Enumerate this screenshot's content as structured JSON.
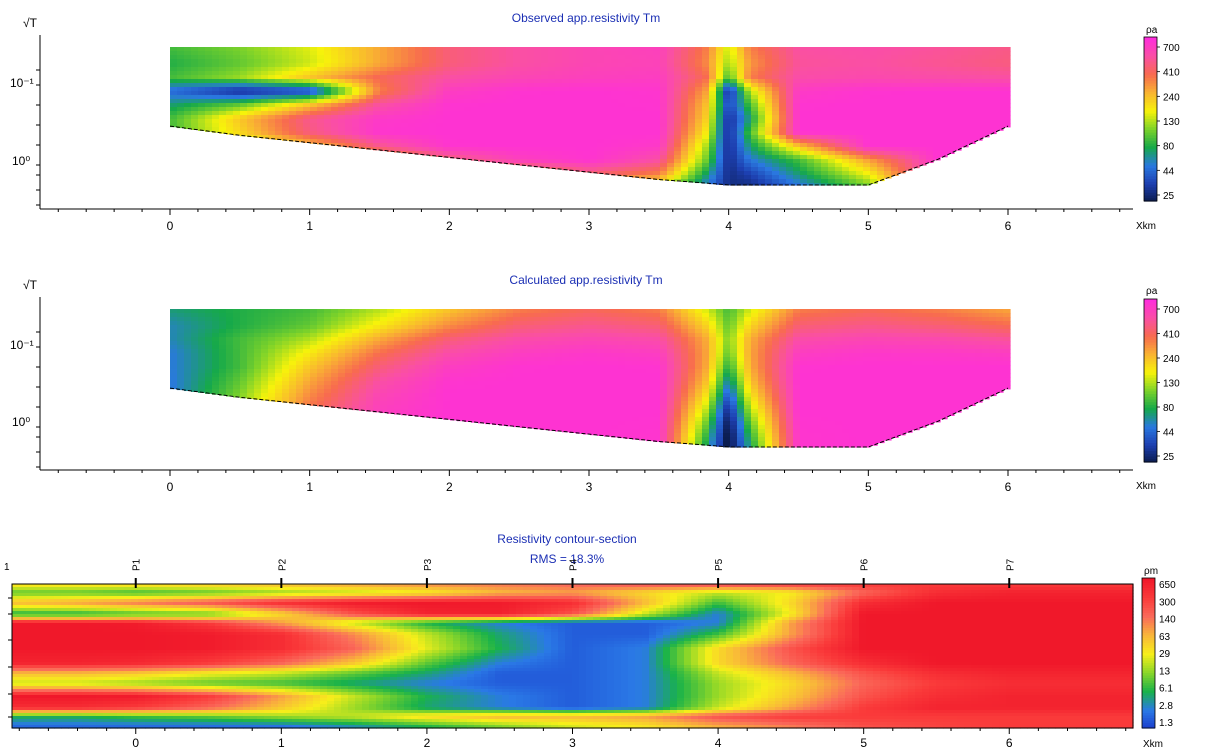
{
  "colors": {
    "title": "#1b2fb4",
    "app_res_scale": [
      "#0a1a4a",
      "#1d3fb0",
      "#2a78e0",
      "#16a94a",
      "#7cd22a",
      "#f7f30a",
      "#f9b431",
      "#f86b4f",
      "#fa4fa4",
      "#ff2ddc"
    ],
    "res_scale": [
      "#1a3bcc",
      "#2a79e6",
      "#19b24a",
      "#8ad629",
      "#f7ef1a",
      "#f9b63a",
      "#fa6a5a",
      "#fa3a3a",
      "#f0182a"
    ]
  },
  "chart_data": [
    {
      "type": "heatmap",
      "title": "Observed app.resistivity Tm",
      "ylabel": "√T",
      "xlabel": "Xkm",
      "x_ticks": [
        "0",
        "1",
        "2",
        "3",
        "4",
        "5",
        "6"
      ],
      "xlim": [
        -1.1,
        6.8
      ],
      "y_ticks": [
        "10⁻¹",
        "10⁰"
      ],
      "colorbar_label": "ρa",
      "colorbar_ticks": [
        "700",
        "410",
        "240",
        "130",
        "80",
        "44",
        "25"
      ],
      "x": [
        0,
        0.5,
        1,
        1.5,
        2,
        2.5,
        3,
        3.5,
        3.85,
        4,
        4.15,
        4.5,
        5,
        5.5,
        6
      ],
      "bottom_sqrtT": [
        1.08,
        1.18,
        1.26,
        1.34,
        1.42,
        1.5,
        1.58,
        1.66,
        1.7,
        1.72,
        1.72,
        1.72,
        1.72,
        1.44,
        1.08
      ],
      "sqrtT": [
        0.22,
        0.4,
        0.55,
        0.7,
        0.85,
        1.0,
        1.15,
        1.3,
        1.45,
        1.6,
        1.72
      ],
      "rho_a": [
        [
          80,
          100,
          140,
          240,
          410,
          500,
          560,
          600,
          300,
          130,
          300,
          500,
          520,
          480,
          440
        ],
        [
          70,
          90,
          130,
          240,
          410,
          500,
          560,
          580,
          280,
          110,
          260,
          480,
          500,
          460,
          420
        ],
        [
          80,
          110,
          200,
          350,
          500,
          560,
          600,
          620,
          330,
          80,
          300,
          520,
          540,
          520,
          500
        ],
        [
          40,
          25,
          30,
          300,
          620,
          690,
          700,
          680,
          240,
          25,
          120,
          640,
          690,
          700,
          700
        ],
        [
          60,
          90,
          200,
          500,
          690,
          700,
          700,
          690,
          200,
          30,
          80,
          690,
          700,
          700,
          700
        ],
        [
          80,
          200,
          450,
          650,
          700,
          700,
          700,
          700,
          180,
          25,
          60,
          700,
          700,
          700,
          700
        ],
        [
          80,
          180,
          420,
          680,
          700,
          700,
          700,
          700,
          150,
          25,
          80,
          700,
          700,
          700,
          700
        ],
        [
          60,
          100,
          200,
          450,
          690,
          700,
          700,
          650,
          110,
          25,
          60,
          200,
          700,
          700,
          700
        ],
        [
          70,
          80,
          110,
          200,
          400,
          600,
          690,
          500,
          90,
          25,
          44,
          80,
          250,
          700,
          700
        ],
        [
          80,
          80,
          80,
          100,
          150,
          250,
          400,
          300,
          60,
          25,
          30,
          60,
          150,
          700,
          700
        ],
        [
          80,
          80,
          80,
          80,
          100,
          130,
          200,
          150,
          44,
          25,
          25,
          44,
          100,
          700,
          700
        ]
      ]
    },
    {
      "type": "heatmap",
      "title": "Calculated app.resistivity Tm",
      "ylabel": "√T",
      "xlabel": "Xkm",
      "x_ticks": [
        "0",
        "1",
        "2",
        "3",
        "4",
        "5",
        "6"
      ],
      "xlim": [
        -1.1,
        6.8
      ],
      "y_ticks": [
        "10⁻¹",
        "10⁰"
      ],
      "colorbar_label": "ρa",
      "colorbar_ticks": [
        "700",
        "410",
        "240",
        "130",
        "80",
        "44",
        "25"
      ],
      "x": [
        0,
        0.5,
        1,
        1.5,
        2,
        2.5,
        3,
        3.5,
        3.85,
        4,
        4.15,
        4.5,
        5,
        5.5,
        6
      ],
      "bottom_sqrtT": [
        1.08,
        1.18,
        1.26,
        1.34,
        1.42,
        1.5,
        1.58,
        1.66,
        1.7,
        1.72,
        1.72,
        1.72,
        1.72,
        1.44,
        1.08
      ],
      "sqrtT": [
        0.22,
        0.4,
        0.55,
        0.7,
        0.85,
        1.0,
        1.15,
        1.3,
        1.45,
        1.6,
        1.72
      ],
      "rho_a": [
        [
          60,
          70,
          80,
          120,
          200,
          300,
          350,
          300,
          130,
          80,
          130,
          300,
          340,
          300,
          240
        ],
        [
          50,
          70,
          90,
          160,
          280,
          400,
          450,
          400,
          180,
          90,
          180,
          400,
          440,
          400,
          340
        ],
        [
          50,
          80,
          120,
          240,
          410,
          520,
          560,
          520,
          230,
          100,
          230,
          520,
          560,
          540,
          480
        ],
        [
          45,
          80,
          160,
          330,
          520,
          620,
          660,
          620,
          240,
          90,
          240,
          620,
          660,
          650,
          620
        ],
        [
          45,
          80,
          200,
          410,
          620,
          690,
          700,
          690,
          230,
          70,
          230,
          690,
          700,
          700,
          700
        ],
        [
          44,
          90,
          240,
          500,
          680,
          700,
          700,
          700,
          200,
          50,
          200,
          700,
          700,
          700,
          700
        ],
        [
          44,
          100,
          280,
          560,
          700,
          700,
          700,
          700,
          160,
          35,
          160,
          700,
          700,
          700,
          700
        ],
        [
          44,
          110,
          320,
          600,
          700,
          700,
          700,
          700,
          120,
          25,
          120,
          700,
          700,
          700,
          700
        ],
        [
          44,
          120,
          340,
          620,
          700,
          700,
          700,
          690,
          90,
          20,
          90,
          690,
          700,
          700,
          700
        ],
        [
          44,
          120,
          350,
          640,
          700,
          700,
          700,
          680,
          70,
          18,
          70,
          680,
          700,
          700,
          700
        ],
        [
          44,
          120,
          350,
          640,
          700,
          700,
          700,
          680,
          60,
          18,
          60,
          680,
          700,
          700,
          700
        ]
      ]
    },
    {
      "type": "heatmap",
      "title": "Resistivity contour-section",
      "subtitle": "RMS = 18.3%",
      "xlabel": "Xkm",
      "x_ticks": [
        "0",
        "1",
        "2",
        "3",
        "4",
        "5",
        "6"
      ],
      "xlim": [
        -0.85,
        6.85
      ],
      "y_ticks": [
        "1"
      ],
      "stations": [
        {
          "name": "P1",
          "x": 0
        },
        {
          "name": "P2",
          "x": 1
        },
        {
          "name": "P3",
          "x": 2
        },
        {
          "name": "P4",
          "x": 3
        },
        {
          "name": "P5",
          "x": 4
        },
        {
          "name": "P6",
          "x": 5
        },
        {
          "name": "P7",
          "x": 6
        }
      ],
      "colorbar_label": "ρm",
      "colorbar_ticks": [
        "650",
        "300",
        "140",
        "63",
        "29",
        "13",
        "6.1",
        "2.8",
        "1.3"
      ],
      "x": [
        -0.85,
        -0.4,
        0,
        0.5,
        1,
        1.5,
        2,
        2.5,
        3,
        3.5,
        4,
        4.5,
        5,
        5.5,
        6,
        6.85
      ],
      "depth_rows": [
        0,
        0.06,
        0.13,
        0.21,
        0.27,
        0.35,
        0.45,
        0.55,
        0.62,
        0.69,
        0.78,
        0.86,
        0.92,
        1.0
      ],
      "rho": [
        [
          40,
          40,
          45,
          50,
          60,
          80,
          100,
          120,
          150,
          200,
          250,
          300,
          300,
          300,
          300,
          300
        ],
        [
          10,
          10,
          8,
          10,
          15,
          20,
          30,
          60,
          80,
          40,
          20,
          30,
          150,
          400,
          500,
          500
        ],
        [
          60,
          80,
          120,
          200,
          400,
          600,
          650,
          600,
          400,
          60,
          8,
          40,
          400,
          650,
          650,
          650
        ],
        [
          6,
          6,
          8,
          10,
          40,
          200,
          500,
          550,
          200,
          20,
          3,
          30,
          650,
          650,
          650,
          650
        ],
        [
          650,
          650,
          600,
          300,
          80,
          20,
          6,
          3,
          2,
          2,
          3,
          80,
          650,
          650,
          650,
          650
        ],
        [
          650,
          650,
          650,
          600,
          400,
          100,
          20,
          5,
          2,
          2,
          8,
          80,
          650,
          650,
          650,
          650
        ],
        [
          650,
          650,
          650,
          600,
          400,
          150,
          25,
          6,
          2,
          3,
          40,
          200,
          650,
          650,
          650,
          650
        ],
        [
          500,
          500,
          450,
          300,
          150,
          50,
          10,
          3,
          2,
          3,
          40,
          150,
          400,
          650,
          650,
          650
        ],
        [
          60,
          60,
          50,
          30,
          20,
          10,
          5,
          2,
          2,
          3,
          20,
          60,
          200,
          400,
          500,
          500
        ],
        [
          20,
          20,
          15,
          10,
          8,
          5,
          3,
          2,
          2,
          3,
          15,
          40,
          150,
          300,
          400,
          400
        ],
        [
          650,
          650,
          600,
          300,
          80,
          20,
          6,
          3,
          2,
          3,
          15,
          50,
          200,
          400,
          500,
          500
        ],
        [
          400,
          400,
          300,
          150,
          50,
          15,
          5,
          3,
          2,
          3,
          20,
          80,
          300,
          500,
          500,
          500
        ],
        [
          6,
          6,
          8,
          10,
          15,
          20,
          40,
          60,
          60,
          80,
          200,
          300,
          300,
          300,
          300,
          300
        ],
        [
          2,
          2,
          2,
          2,
          2,
          3,
          5,
          10,
          20,
          30,
          60,
          100,
          200,
          250,
          300,
          300
        ]
      ]
    }
  ]
}
